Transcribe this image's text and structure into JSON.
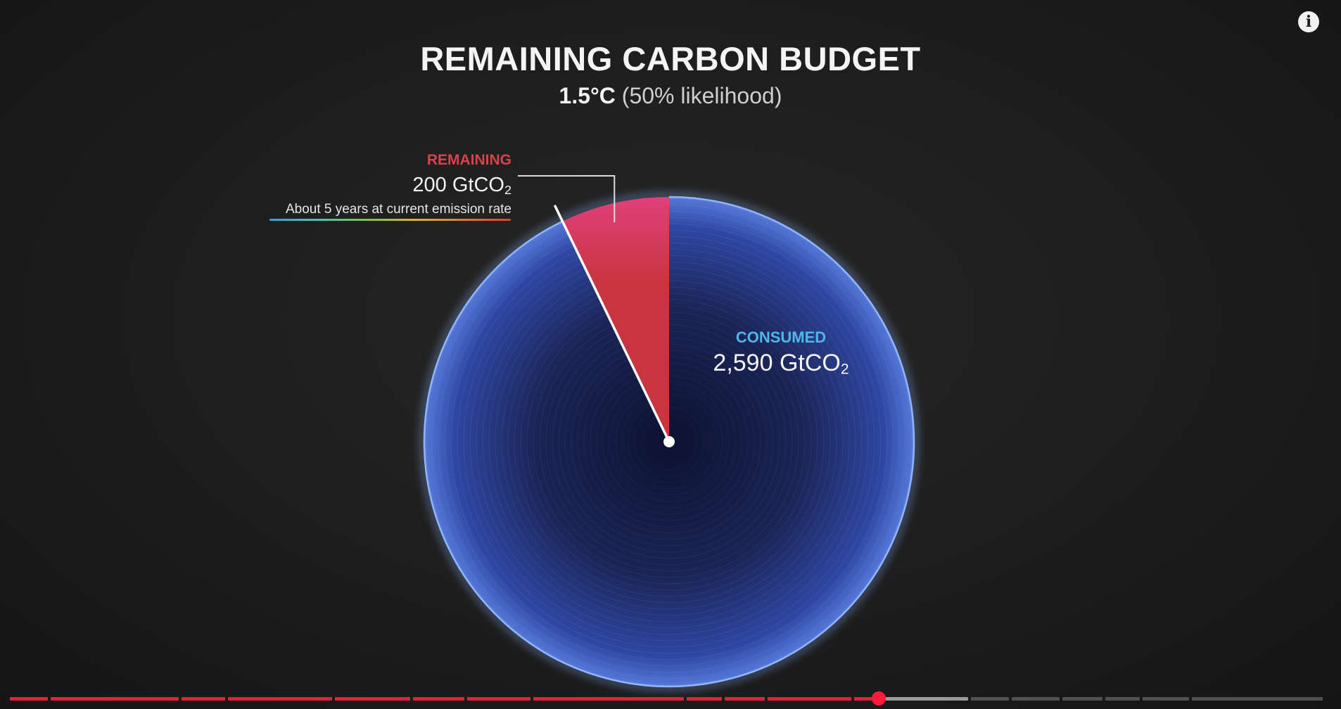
{
  "chart_data": {
    "type": "pie",
    "title": "REMAINING CARBON BUDGET",
    "subtitle_strong": "1.5°C",
    "subtitle_rest": "(50% likelihood)",
    "unit_prefix": "GtCO",
    "unit_subscript": "2",
    "slices": [
      {
        "label": "REMAINING",
        "value": 200,
        "value_text": "200",
        "note": "About 5 years at current emission rate",
        "color": "#c9353f"
      },
      {
        "label": "CONSUMED",
        "value": 2590,
        "value_text": "2,590",
        "color": "#2c3f8c"
      }
    ]
  },
  "colors": {
    "remaining": "#c9353f",
    "remaining_top": "#e0407a",
    "consumed_rim": "#8fb6ff",
    "consumed_center": "#0c1230",
    "played": "#e3203a"
  },
  "icons": {
    "info": "info-icon"
  },
  "info_glyph": "i",
  "player": {
    "progress_fraction": 0.66
  }
}
